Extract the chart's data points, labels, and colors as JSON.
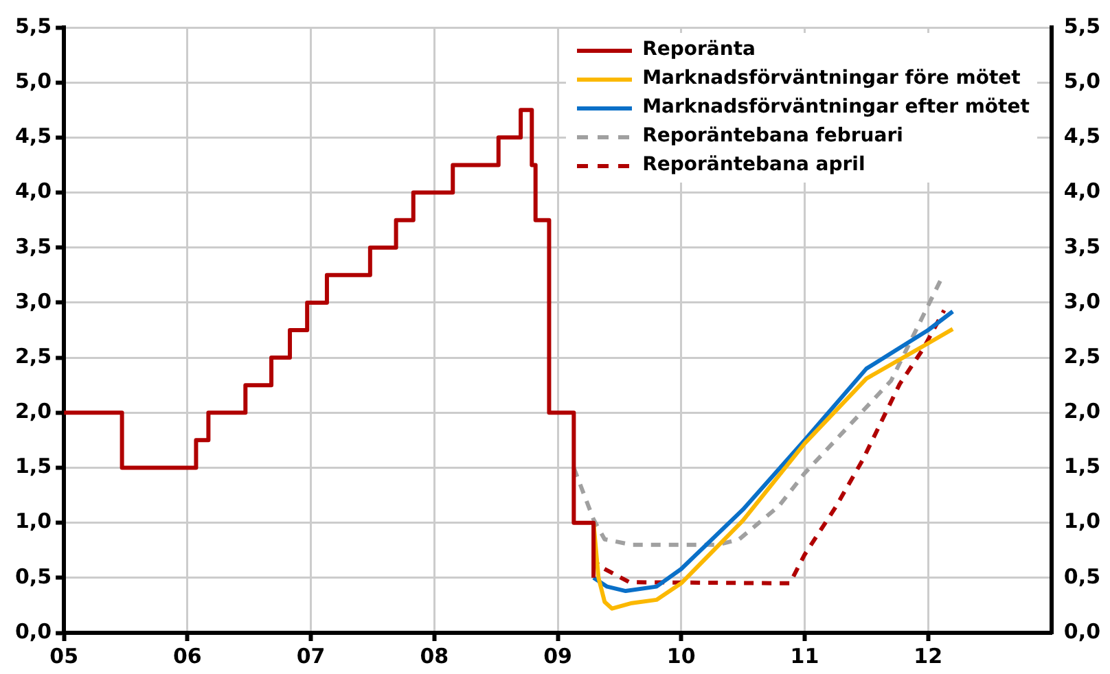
{
  "chart_data": {
    "type": "line",
    "xlim": [
      2005,
      2013
    ],
    "xticks": [
      {
        "value": 2005,
        "label": "05"
      },
      {
        "value": 2006,
        "label": "06"
      },
      {
        "value": 2007,
        "label": "07"
      },
      {
        "value": 2008,
        "label": "08"
      },
      {
        "value": 2009,
        "label": "09"
      },
      {
        "value": 2010,
        "label": "10"
      },
      {
        "value": 2011,
        "label": "11"
      },
      {
        "value": 2012,
        "label": "12"
      }
    ],
    "ylim": [
      0,
      5.5
    ],
    "yticks": [
      {
        "value": 0,
        "label": "0,0"
      },
      {
        "value": 0.5,
        "label": "0,5"
      },
      {
        "value": 1,
        "label": "1,0"
      },
      {
        "value": 1.5,
        "label": "1,5"
      },
      {
        "value": 2,
        "label": "2,0"
      },
      {
        "value": 2.5,
        "label": "2,5"
      },
      {
        "value": 3,
        "label": "3,0"
      },
      {
        "value": 3.5,
        "label": "3,5"
      },
      {
        "value": 4,
        "label": "4,0"
      },
      {
        "value": 4.5,
        "label": "4,5"
      },
      {
        "value": 5,
        "label": "5,0"
      },
      {
        "value": 5.5,
        "label": "5,5"
      }
    ],
    "y2lim": [
      0,
      5.5
    ],
    "y2ticks": [
      {
        "value": 0,
        "label": "0,0"
      },
      {
        "value": 0.5,
        "label": "0,5"
      },
      {
        "value": 1,
        "label": "1,0"
      },
      {
        "value": 1.5,
        "label": "1,5"
      },
      {
        "value": 2,
        "label": "2,0"
      },
      {
        "value": 2.5,
        "label": "2,5"
      },
      {
        "value": 3,
        "label": "3,0"
      },
      {
        "value": 3.5,
        "label": "3,5"
      },
      {
        "value": 4,
        "label": "4,0"
      },
      {
        "value": 4.5,
        "label": "4,5"
      },
      {
        "value": 5,
        "label": "5,0"
      },
      {
        "value": 5.5,
        "label": "5,5"
      }
    ],
    "grid": true,
    "legend": "top right",
    "marker": "none",
    "series": [
      {
        "name": "Reporänta",
        "type": "step",
        "color": "#b00000",
        "line_style": "solid",
        "x": [
          2005,
          2005.47,
          2006.07,
          2006.17,
          2006.47,
          2006.68,
          2006.83,
          2006.97,
          2007.13,
          2007.48,
          2007.69,
          2007.83,
          2008.15,
          2008.52,
          2008.7,
          2008.79,
          2008.82,
          2008.93,
          2009.13,
          2009.29
        ],
        "values": [
          2.0,
          1.5,
          1.75,
          2.0,
          2.25,
          2.5,
          2.75,
          3.0,
          3.25,
          3.5,
          3.75,
          4.0,
          4.25,
          4.5,
          4.75,
          4.25,
          3.75,
          2.0,
          1.0,
          0.5
        ]
      },
      {
        "name": "Marknadsförväntningar före mötet",
        "type": "line",
        "color": "#fbb800",
        "line_style": "solid",
        "x": [
          2009.29,
          2009.33,
          2009.38,
          2009.44,
          2009.6,
          2009.8,
          2010.0,
          2010.5,
          2011.0,
          2011.5,
          2012.0,
          2012.2
        ],
        "values": [
          1.0,
          0.5,
          0.28,
          0.22,
          0.27,
          0.3,
          0.45,
          1.02,
          1.72,
          2.31,
          2.63,
          2.76
        ]
      },
      {
        "name": "Marknadsförväntningar efter mötet",
        "type": "line",
        "color": "#0a70c8",
        "line_style": "solid",
        "x": [
          2009.29,
          2009.4,
          2009.55,
          2009.8,
          2010.0,
          2010.5,
          2011.0,
          2011.5,
          2012.0,
          2012.2
        ],
        "values": [
          0.5,
          0.42,
          0.38,
          0.42,
          0.58,
          1.12,
          1.75,
          2.4,
          2.75,
          2.92
        ]
      },
      {
        "name": "Reporäntebana februari",
        "type": "line",
        "color": "#a0a0a0",
        "line_style": "dashed",
        "x": [
          2009.13,
          2009.29,
          2009.38,
          2009.6,
          2010.3,
          2010.47,
          2010.79,
          2011.0,
          2011.7,
          2012.1
        ],
        "values": [
          1.5,
          1.03,
          0.85,
          0.8,
          0.8,
          0.85,
          1.15,
          1.45,
          2.29,
          3.2
        ]
      },
      {
        "name": "Reporäntebana april",
        "type": "line",
        "color": "#b00000",
        "line_style": "dashed",
        "x": [
          2009.29,
          2009.33,
          2009.58,
          2010.88,
          2011.0,
          2011.25,
          2011.47,
          2011.77,
          2011.96,
          2012.13
        ],
        "values": [
          0.7,
          0.61,
          0.46,
          0.45,
          0.71,
          1.14,
          1.57,
          2.26,
          2.58,
          2.93
        ]
      }
    ]
  }
}
